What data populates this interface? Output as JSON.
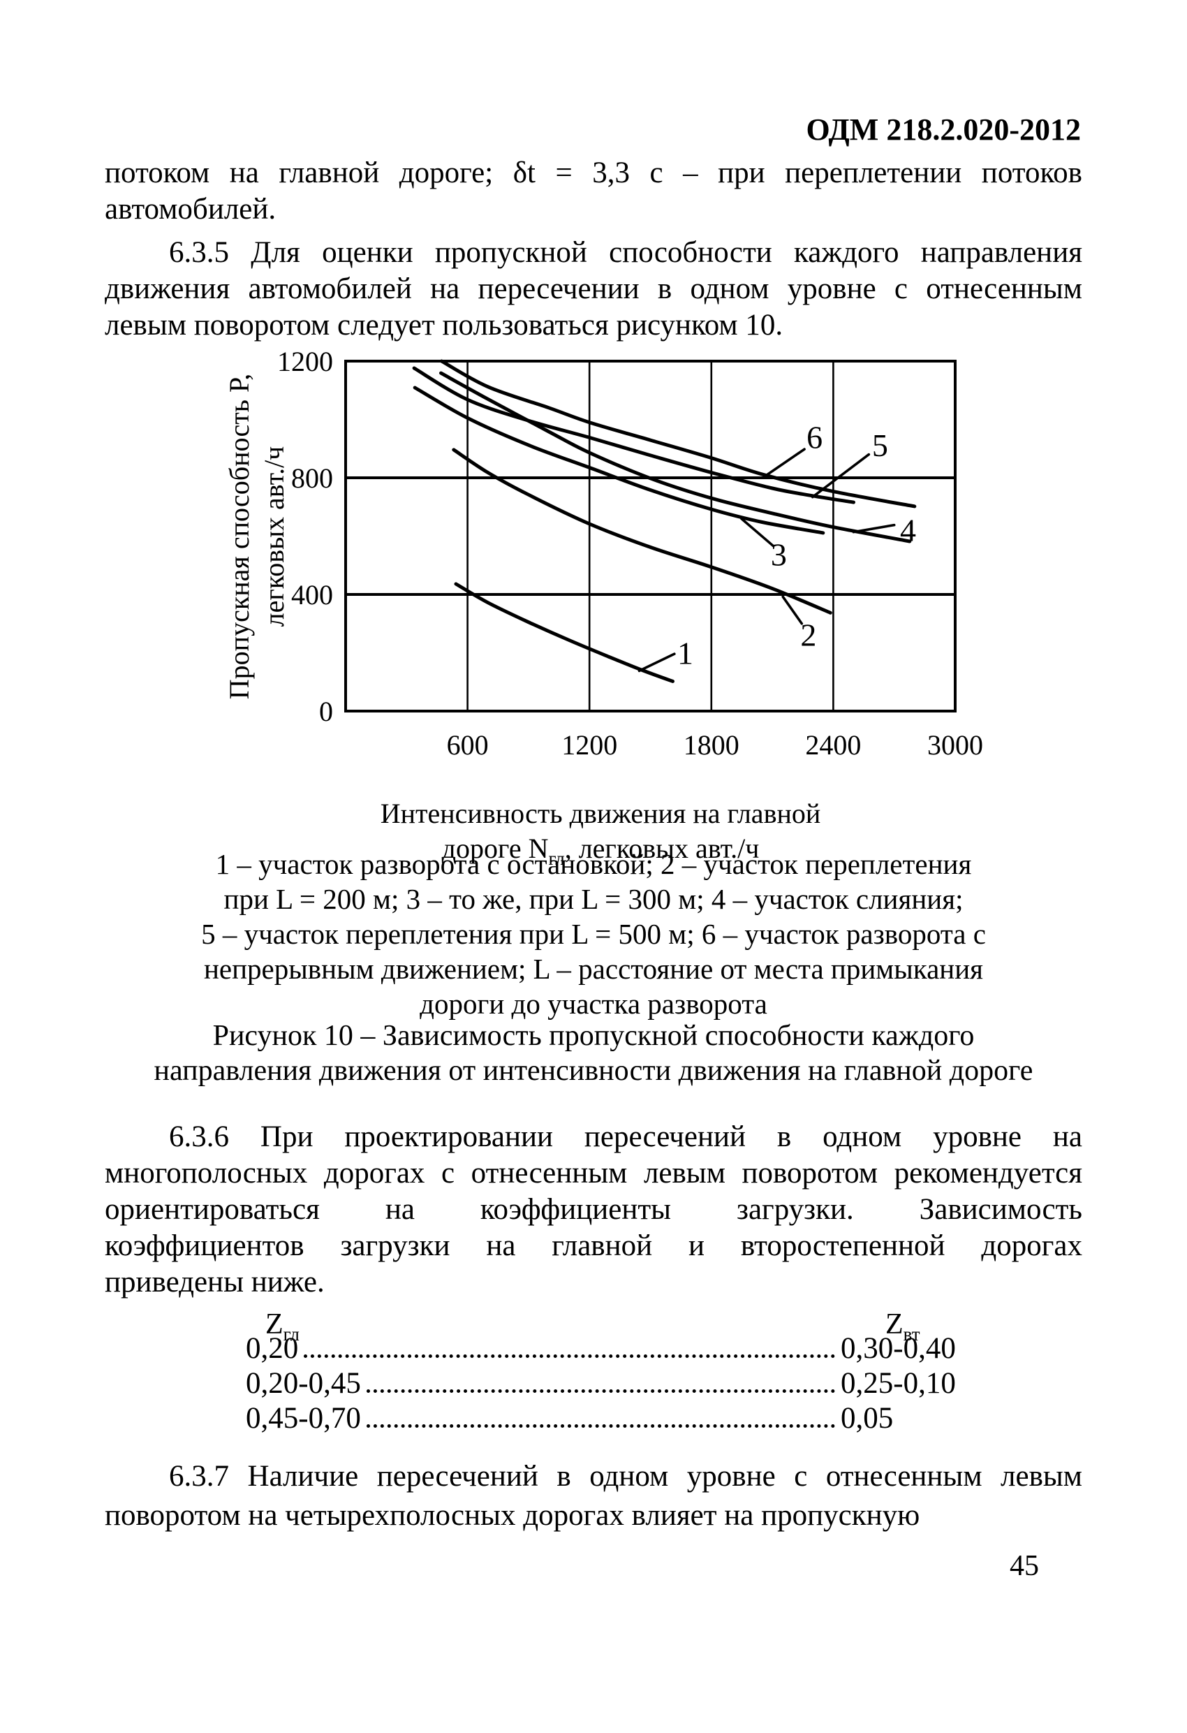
{
  "page": {
    "header": "ОДМ 218.2.020-2012",
    "page_number": "45"
  },
  "paragraphs": {
    "intro": {
      "lines": [
        "потоком на главной дороге; δt = 3,3 с – при переплетении потоков",
        "автомобилей."
      ]
    },
    "p635": {
      "lines": [
        "6.3.5 Для оценки пропускной способности каждого направления",
        "движения автомобилей на пересечении в одном уровне с отнесенным",
        "левым поворотом следует пользоваться рисунком 10."
      ]
    },
    "p636": {
      "lines": [
        "6.3.6 При проектировании пересечений в одном уровне на",
        "многополосных дорогах с отнесенным левым поворотом рекомендуется",
        "ориентироваться на коэффициенты загрузки. Зависимость",
        "коэффициентов загрузки на главной и второстепенной дорогах",
        "приведены ниже."
      ]
    },
    "p637": {
      "lines": [
        "6.3.7 Наличие пересечений в одном уровне с отнесенным левым",
        "поворотом на четырехполосных дорогах влияет на пропускную"
      ]
    }
  },
  "figure": {
    "caption_lines": [
      "1 – участок разворота с остановкой; 2 – участок переплетения",
      "при L = 200 м; 3 – то же, при L = 300 м; 4 – участок слияния;",
      "5 – участок переплетения при L = 500 м; 6 – участок разворота с",
      "непрерывным движением; L – расстояние от места примыкания",
      "дороги до участка разворота"
    ],
    "title_lines": [
      "Рисунок 10 – Зависимость пропускной способности каждого",
      "направления движения от интенсивности движения на главной дороге"
    ]
  },
  "ztable": {
    "left_header": {
      "base": "Z",
      "sub": "гл"
    },
    "right_header": {
      "base": "Z",
      "sub": "вт"
    },
    "rows": [
      {
        "left": "0,20",
        "right": "0,30-0,40"
      },
      {
        "left": "0,20-0,45",
        "right": "0,25-0,10"
      },
      {
        "left": "0,45-0,70",
        "right": "0,05"
      }
    ]
  },
  "chart_data": {
    "type": "line",
    "title": "Рисунок 10 – Зависимость пропускной способности каждого направления движения от интенсивности движения на главной дороге",
    "xlabel_line1": "Интенсивность движения на главной",
    "xlabel_line2_pre": "дороге N",
    "xlabel_line2_sub": "гл",
    "xlabel_line2_post": ", легковых авт./ч",
    "ylabel_line1": "Пропускная способность Р,",
    "ylabel_line2": "легковых авт./ч",
    "xlim": [
      0,
      3000
    ],
    "ylim": [
      0,
      1200
    ],
    "x_ticks": [
      600,
      1200,
      1800,
      2400,
      3000
    ],
    "y_ticks": [
      0,
      400,
      800,
      1200
    ],
    "grid": true,
    "series": [
      {
        "name": "1",
        "label": "участок разворота с остановкой",
        "points": [
          [
            543,
            436
          ],
          [
            700,
            372
          ],
          [
            900,
            305
          ],
          [
            1100,
            243
          ],
          [
            1300,
            185
          ],
          [
            1460,
            140
          ],
          [
            1610,
            102
          ]
        ]
      },
      {
        "name": "2",
        "label": "участок переплетения при L = 200 м",
        "points": [
          [
            532,
            896
          ],
          [
            700,
            818
          ],
          [
            900,
            742
          ],
          [
            1200,
            642
          ],
          [
            1500,
            562
          ],
          [
            1800,
            494
          ],
          [
            2100,
            420
          ],
          [
            2386,
            337
          ]
        ]
      },
      {
        "name": "3",
        "label": "то же, при L = 300 м",
        "points": [
          [
            341,
            1109
          ],
          [
            600,
            1005
          ],
          [
            900,
            912
          ],
          [
            1200,
            835
          ],
          [
            1500,
            758
          ],
          [
            1800,
            692
          ],
          [
            2050,
            648
          ],
          [
            2350,
            611
          ]
        ]
      },
      {
        "name": "4",
        "label": "участок слияния",
        "points": [
          [
            469,
            1159
          ],
          [
            700,
            1070
          ],
          [
            1000,
            958
          ],
          [
            1200,
            886
          ],
          [
            1500,
            798
          ],
          [
            1800,
            730
          ],
          [
            2100,
            678
          ],
          [
            2400,
            631
          ],
          [
            2776,
            582
          ]
        ]
      },
      {
        "name": "5",
        "label": "участок переплетения при L = 500 м",
        "points": [
          [
            337,
            1176
          ],
          [
            600,
            1068
          ],
          [
            900,
            996
          ],
          [
            1200,
            938
          ],
          [
            1500,
            877
          ],
          [
            1800,
            818
          ],
          [
            2100,
            764
          ],
          [
            2300,
            738
          ],
          [
            2500,
            716
          ]
        ]
      },
      {
        "name": "6",
        "label": "участок разворота с непрерывным движением",
        "points": [
          [
            472,
            1200
          ],
          [
            700,
            1112
          ],
          [
            1000,
            1040
          ],
          [
            1200,
            990
          ],
          [
            1500,
            929
          ],
          [
            1800,
            868
          ],
          [
            2060,
            810
          ],
          [
            2400,
            753
          ],
          [
            2800,
            702
          ]
        ]
      }
    ],
    "curve_labels": [
      {
        "text": "1",
        "x": 1672,
        "y": 200,
        "leader": [
          [
            1445,
            138
          ],
          [
            1618,
            196
          ]
        ]
      },
      {
        "text": "2",
        "x": 2278,
        "y": 262,
        "leader": [
          [
            2152,
            392
          ],
          [
            2245,
            300
          ]
        ]
      },
      {
        "text": "3",
        "x": 2132,
        "y": 538,
        "leader": [
          [
            1948,
            660
          ],
          [
            2105,
            566
          ]
        ]
      },
      {
        "text": "4",
        "x": 2768,
        "y": 622,
        "leader": [
          [
            2500,
            614
          ],
          [
            2700,
            638
          ]
        ]
      },
      {
        "text": "5",
        "x": 2630,
        "y": 912,
        "leader": [
          [
            2298,
            734
          ],
          [
            2575,
            880
          ]
        ]
      },
      {
        "text": "6",
        "x": 2308,
        "y": 940,
        "leader": [
          [
            2065,
            806
          ],
          [
            2258,
            898
          ]
        ]
      }
    ]
  }
}
